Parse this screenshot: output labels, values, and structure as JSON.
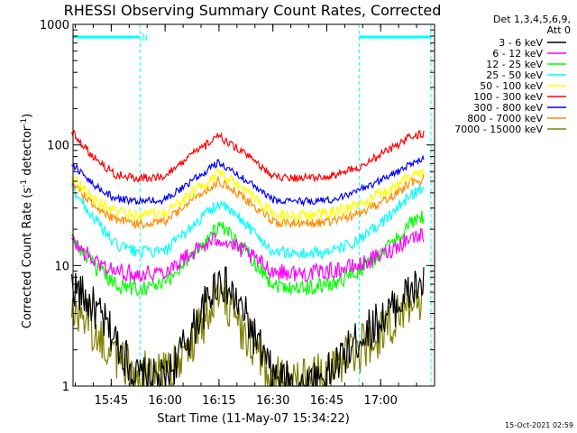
{
  "chart_data": {
    "type": "line",
    "title": "RHESSI Observing Summary Count Rates, Corrected",
    "xlabel": "Start Time (11-May-07 15:34:22)",
    "ylabel_main": "Corrected Count Rate (s",
    "ylabel_sup1": "-1",
    "ylabel_mid": " detector",
    "ylabel_sup2": "-1",
    "ylabel_end": ")",
    "y_scale": "log",
    "ylim": [
      1,
      1000
    ],
    "xlim": [
      "15:34:22",
      "17:15:00"
    ],
    "x_ticks": [
      "15:45",
      "16:00",
      "16:15",
      "16:30",
      "16:45",
      "17:00"
    ],
    "y_ticks": [
      "1",
      "10",
      "100",
      "1000"
    ],
    "legend_header": [
      "Det 1,3,4,5,6,9,",
      "Att 0"
    ],
    "legend_position": "top-right, outside plot",
    "series": [
      {
        "name": "3 - 6 keV",
        "color": "#000000",
        "x": [
          "15:34",
          "15:40",
          "15:46",
          "15:52",
          "16:00",
          "16:08",
          "16:15",
          "16:22",
          "16:30",
          "16:38",
          "16:46",
          "16:54",
          "17:02",
          "17:08",
          "17:12"
        ],
        "y": [
          7.0,
          4.5,
          2.5,
          1.2,
          1.1,
          3.0,
          8.0,
          4.0,
          1.2,
          1.0,
          1.3,
          2.5,
          4.0,
          6.0,
          7.0
        ]
      },
      {
        "name": "6 - 12 keV",
        "color": "#ff00ff",
        "x": [
          "15:34",
          "15:40",
          "15:46",
          "15:52",
          "16:00",
          "16:08",
          "16:15",
          "16:22",
          "16:30",
          "16:38",
          "16:46",
          "16:54",
          "17:02",
          "17:08",
          "17:12"
        ],
        "y": [
          16,
          11,
          9,
          8.5,
          9.0,
          13,
          17,
          13,
          9.0,
          8.5,
          9.0,
          10,
          13,
          17,
          18
        ]
      },
      {
        "name": "12 - 25 keV",
        "color": "#00ff00",
        "x": [
          "15:34",
          "15:40",
          "15:46",
          "15:52",
          "16:00",
          "16:08",
          "16:15",
          "16:22",
          "16:30",
          "16:38",
          "16:46",
          "16:54",
          "17:02",
          "17:08",
          "17:12"
        ],
        "y": [
          17,
          10,
          7.0,
          6.5,
          7.0,
          13,
          21,
          14,
          7.0,
          6.5,
          7.0,
          9.0,
          14,
          22,
          25
        ]
      },
      {
        "name": "25 - 50 keV",
        "color": "#00ffff",
        "x": [
          "15:34",
          "15:40",
          "15:46",
          "15:52",
          "16:00",
          "16:08",
          "16:15",
          "16:22",
          "16:30",
          "16:38",
          "16:46",
          "16:54",
          "17:02",
          "17:08",
          "17:12"
        ],
        "y": [
          45,
          25,
          15,
          13,
          13,
          22,
          33,
          23,
          13,
          12.5,
          13,
          16,
          25,
          38,
          45
        ]
      },
      {
        "name": "50 - 100 keV",
        "color": "#ffff00",
        "x": [
          "15:34",
          "15:40",
          "15:46",
          "15:52",
          "16:00",
          "16:08",
          "16:15",
          "16:22",
          "16:30",
          "16:38",
          "16:46",
          "16:54",
          "17:02",
          "17:08",
          "17:12"
        ],
        "y": [
          55,
          36,
          28,
          26,
          27,
          42,
          58,
          42,
          27,
          26,
          27,
          32,
          42,
          55,
          60
        ]
      },
      {
        "name": "100 - 300 keV",
        "color": "#ff0000",
        "x": [
          "15:34",
          "15:40",
          "15:46",
          "15:52",
          "16:00",
          "16:08",
          "16:15",
          "16:22",
          "16:30",
          "16:38",
          "16:46",
          "16:54",
          "17:02",
          "17:08",
          "17:12"
        ],
        "y": [
          130,
          80,
          57,
          53,
          55,
          85,
          118,
          85,
          55,
          53,
          55,
          65,
          90,
          115,
          125
        ]
      },
      {
        "name": "300 - 800 keV",
        "color": "#0000ff",
        "x": [
          "15:34",
          "15:40",
          "15:46",
          "15:52",
          "16:00",
          "16:08",
          "16:15",
          "16:22",
          "16:30",
          "16:38",
          "16:46",
          "16:54",
          "17:02",
          "17:08",
          "17:12"
        ],
        "y": [
          70,
          47,
          36,
          34,
          35,
          52,
          72,
          52,
          35,
          34,
          35,
          42,
          55,
          68,
          78
        ]
      },
      {
        "name": "800 - 7000 keV",
        "color": "#ff8c00",
        "x": [
          "15:34",
          "15:40",
          "15:46",
          "15:52",
          "16:00",
          "16:08",
          "16:15",
          "16:22",
          "16:30",
          "16:38",
          "16:46",
          "16:54",
          "17:02",
          "17:08",
          "17:12"
        ],
        "y": [
          50,
          32,
          24,
          22,
          23,
          36,
          50,
          36,
          23,
          22,
          23,
          27,
          36,
          48,
          53
        ]
      },
      {
        "name": "7000 - 15000 keV",
        "color": "#808000",
        "x": [
          "15:34",
          "15:40",
          "15:46",
          "15:52",
          "16:00",
          "16:08",
          "16:15",
          "16:22",
          "16:30",
          "16:38",
          "16:46",
          "16:54",
          "17:02",
          "17:08",
          "17:12"
        ],
        "y": [
          5.0,
          3.0,
          1.8,
          1.3,
          1.2,
          2.5,
          6.0,
          2.8,
          1.2,
          1.1,
          1.3,
          2.0,
          3.0,
          4.5,
          5.5
        ]
      }
    ],
    "flag_bars": [
      {
        "label": "N",
        "start": "15:34:22",
        "end": "15:53:00",
        "color": "#00ffff"
      },
      {
        "label": "",
        "start": "16:54:00",
        "end": "17:14:00",
        "color": "#00ffff"
      }
    ],
    "boundary_lines": [
      "15:34:22",
      "15:53:00",
      "16:54:00",
      "17:14:00"
    ],
    "footer_timestamp": "15-Oct-2021 02:59",
    "grid": false
  }
}
